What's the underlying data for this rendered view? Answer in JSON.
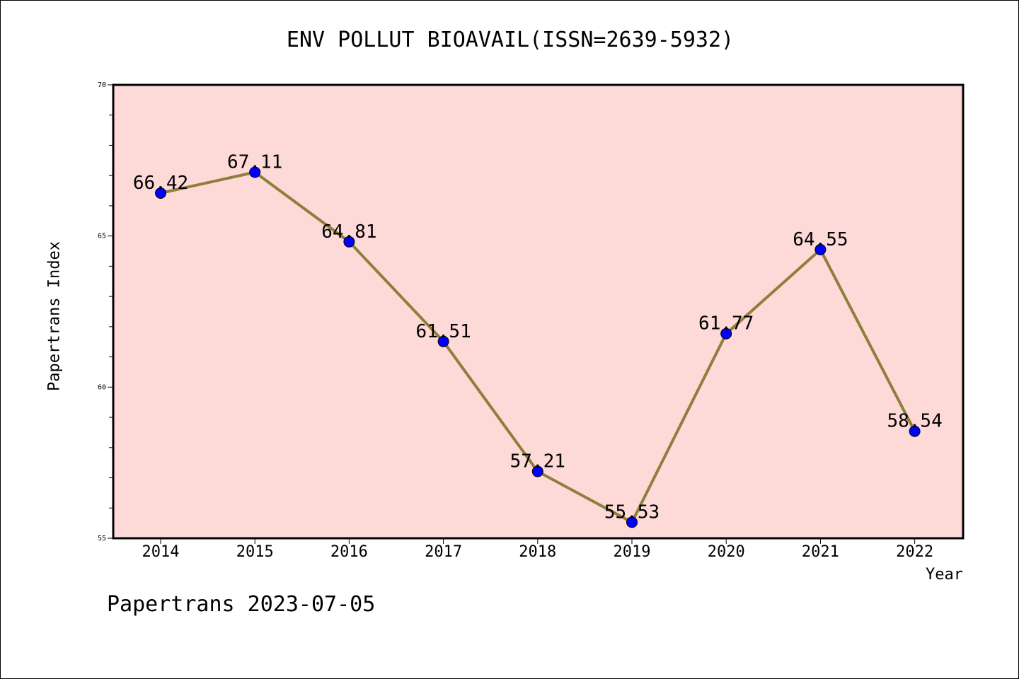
{
  "chart_data": {
    "type": "line",
    "title": "ENV POLLUT BIOAVAIL(ISSN=2639-5932)",
    "xlabel": "Year",
    "ylabel": "Papertrans Index",
    "categories": [
      "2014",
      "2015",
      "2016",
      "2017",
      "2018",
      "2019",
      "2020",
      "2021",
      "2022"
    ],
    "values": [
      66.42,
      67.11,
      64.81,
      61.51,
      57.21,
      55.53,
      61.77,
      64.55,
      58.54
    ],
    "data_labels": [
      "66.42",
      "67.11",
      "64.81",
      "61.51",
      "57.21",
      "55.53",
      "61.77",
      "64.55",
      "58.54"
    ],
    "ylim": [
      55,
      70
    ],
    "y_ticks": [
      55,
      60,
      65,
      70
    ],
    "y_tick_labels": [
      "55",
      "60",
      "65",
      "70"
    ],
    "grid": false,
    "legend": "none",
    "colors": {
      "plot_background": "#fddad8",
      "line": "#8e7f3c",
      "marker": "#0000ff"
    }
  },
  "footer": "Papertrans 2023-07-05"
}
